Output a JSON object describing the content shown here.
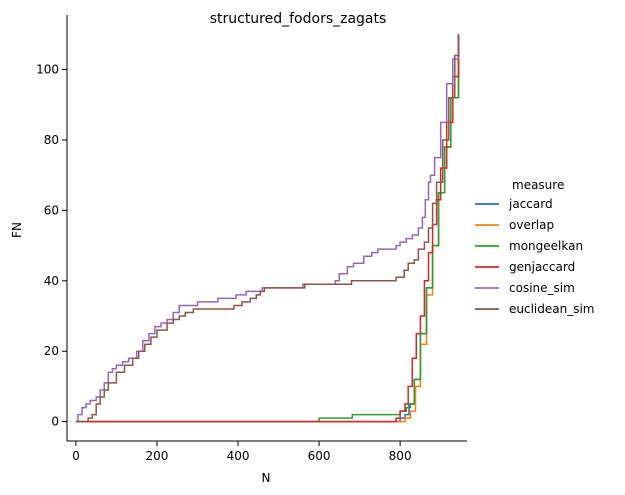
{
  "chart_data": {
    "type": "line",
    "step": true,
    "title": "structured_fodors_zagats",
    "xlabel": "N",
    "ylabel": "FN",
    "xlim": [
      -22,
      965
    ],
    "ylim": [
      -5.5,
      115.5
    ],
    "xticks": [
      0,
      200,
      400,
      600,
      800
    ],
    "yticks": [
      0,
      20,
      40,
      60,
      80,
      100
    ],
    "grid": false,
    "legend": {
      "title": "measure",
      "position": "right"
    },
    "series": [
      {
        "name": "jaccard",
        "color": "#1f77b4",
        "points": [
          [
            0,
            0
          ],
          [
            790,
            0
          ],
          [
            800,
            1
          ],
          [
            812,
            2
          ],
          [
            822,
            5
          ],
          [
            835,
            12
          ],
          [
            850,
            25
          ],
          [
            865,
            38
          ],
          [
            880,
            50
          ],
          [
            895,
            65
          ],
          [
            910,
            78
          ],
          [
            925,
            92
          ],
          [
            944,
            110
          ]
        ]
      },
      {
        "name": "overlap",
        "color": "#ff7f0e",
        "points": [
          [
            0,
            0
          ],
          [
            800,
            0
          ],
          [
            812,
            1
          ],
          [
            825,
            3
          ],
          [
            838,
            10
          ],
          [
            850,
            22
          ],
          [
            865,
            36
          ],
          [
            880,
            50
          ],
          [
            895,
            65
          ],
          [
            910,
            78
          ],
          [
            925,
            92
          ],
          [
            944,
            110
          ]
        ]
      },
      {
        "name": "mongeelkan",
        "color": "#2ca02c",
        "points": [
          [
            0,
            0
          ],
          [
            598,
            0
          ],
          [
            600,
            1
          ],
          [
            680,
            1
          ],
          [
            682,
            2
          ],
          [
            790,
            2
          ],
          [
            800,
            3
          ],
          [
            815,
            4
          ],
          [
            825,
            5
          ],
          [
            835,
            12
          ],
          [
            850,
            25
          ],
          [
            865,
            38
          ],
          [
            880,
            50
          ],
          [
            895,
            65
          ],
          [
            910,
            78
          ],
          [
            925,
            92
          ],
          [
            944,
            110
          ]
        ]
      },
      {
        "name": "genjaccard",
        "color": "#d62728",
        "points": [
          [
            0,
            0
          ],
          [
            780,
            0
          ],
          [
            790,
            1
          ],
          [
            800,
            3
          ],
          [
            812,
            5
          ],
          [
            820,
            10
          ],
          [
            830,
            18
          ],
          [
            840,
            25
          ],
          [
            850,
            30
          ],
          [
            860,
            40
          ],
          [
            870,
            48
          ],
          [
            880,
            56
          ],
          [
            890,
            63
          ],
          [
            900,
            72
          ],
          [
            915,
            85
          ],
          [
            930,
            98
          ],
          [
            944,
            110
          ]
        ]
      },
      {
        "name": "cosine_sim",
        "color": "#9467bd",
        "points": [
          [
            0,
            0
          ],
          [
            5,
            2
          ],
          [
            15,
            4
          ],
          [
            25,
            5
          ],
          [
            35,
            6
          ],
          [
            50,
            7
          ],
          [
            60,
            9
          ],
          [
            70,
            11
          ],
          [
            80,
            14
          ],
          [
            90,
            15
          ],
          [
            100,
            16
          ],
          [
            115,
            17
          ],
          [
            130,
            18
          ],
          [
            150,
            20
          ],
          [
            165,
            23
          ],
          [
            180,
            25
          ],
          [
            195,
            27
          ],
          [
            210,
            28
          ],
          [
            225,
            29
          ],
          [
            240,
            31
          ],
          [
            255,
            33
          ],
          [
            300,
            34
          ],
          [
            350,
            35
          ],
          [
            395,
            36
          ],
          [
            420,
            37
          ],
          [
            440,
            37
          ],
          [
            460,
            38
          ],
          [
            520,
            38
          ],
          [
            560,
            39
          ],
          [
            610,
            39
          ],
          [
            640,
            40
          ],
          [
            650,
            42
          ],
          [
            670,
            44
          ],
          [
            685,
            45
          ],
          [
            710,
            47
          ],
          [
            730,
            48
          ],
          [
            745,
            49
          ],
          [
            790,
            50
          ],
          [
            800,
            51
          ],
          [
            815,
            52
          ],
          [
            830,
            53
          ],
          [
            845,
            55
          ],
          [
            855,
            58
          ],
          [
            862,
            63
          ],
          [
            870,
            68
          ],
          [
            875,
            70
          ],
          [
            885,
            75
          ],
          [
            900,
            85
          ],
          [
            915,
            96
          ],
          [
            930,
            103
          ],
          [
            944,
            110
          ]
        ]
      },
      {
        "name": "euclidean_sim",
        "color": "#8c564b",
        "points": [
          [
            0,
            0
          ],
          [
            30,
            1
          ],
          [
            40,
            2
          ],
          [
            50,
            5
          ],
          [
            60,
            7
          ],
          [
            70,
            9
          ],
          [
            80,
            11
          ],
          [
            100,
            14
          ],
          [
            120,
            16
          ],
          [
            140,
            18
          ],
          [
            155,
            20
          ],
          [
            170,
            22
          ],
          [
            185,
            24
          ],
          [
            200,
            26
          ],
          [
            225,
            28
          ],
          [
            240,
            29
          ],
          [
            255,
            30
          ],
          [
            270,
            31
          ],
          [
            290,
            32
          ],
          [
            390,
            33
          ],
          [
            410,
            34
          ],
          [
            430,
            35
          ],
          [
            445,
            36
          ],
          [
            455,
            37
          ],
          [
            465,
            38
          ],
          [
            550,
            38
          ],
          [
            565,
            39
          ],
          [
            660,
            39
          ],
          [
            680,
            40
          ],
          [
            780,
            40
          ],
          [
            790,
            41
          ],
          [
            810,
            43
          ],
          [
            820,
            45
          ],
          [
            835,
            46
          ],
          [
            845,
            49
          ],
          [
            860,
            51
          ],
          [
            870,
            55
          ],
          [
            880,
            62
          ],
          [
            890,
            68
          ],
          [
            905,
            80
          ],
          [
            920,
            92
          ],
          [
            935,
            104
          ],
          [
            944,
            110
          ]
        ]
      }
    ]
  }
}
